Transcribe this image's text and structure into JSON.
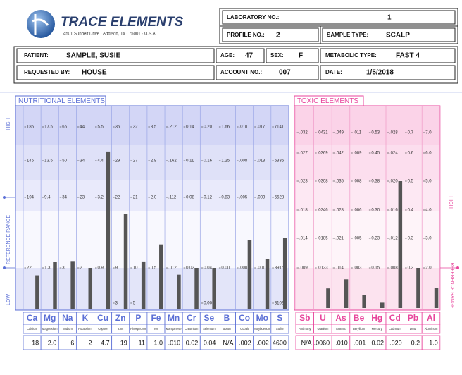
{
  "header": {
    "company": "TRACE ELEMENTS",
    "address": "4501 Sunbelt Drive · Addison, Tx · 75001 · U.S.A."
  },
  "info": {
    "lab_no_label": "LABORATORY NO.:",
    "lab_no": "1",
    "profile_no_label": "PROFILE NO.:",
    "profile_no": "2",
    "sample_type_label": "SAMPLE TYPE:",
    "sample_type": "SCALP",
    "patient_label": "PATIENT:",
    "patient": "SAMPLE, SUSIE",
    "age_label": "AGE:",
    "age": "47",
    "sex_label": "SEX:",
    "sex": "F",
    "metabolic_type_label": "METABOLIC TYPE:",
    "metabolic_type": "FAST 4",
    "requested_by_label": "REQUESTED BY:",
    "requested_by": "HOUSE",
    "account_no_label": "ACCOUNT NO.:",
    "account_no": "007",
    "date_label": "DATE:",
    "date": "1/5/2018"
  },
  "nutritional": {
    "title": "NUTRITIONAL ELEMENTS",
    "axis_labels": {
      "high": "HIGH",
      "reference": "REFERENCE RANGE",
      "low": "LOW"
    },
    "color": "#555555",
    "symbols": [
      "Ca",
      "Mg",
      "Na",
      "K",
      "Cu",
      "Zn",
      "P",
      "Fe",
      "Mn",
      "Cr",
      "Se",
      "B",
      "Co",
      "Mo",
      "S"
    ],
    "names": [
      "Calcium",
      "Magnesium",
      "Sodium",
      "Potassium",
      "Copper",
      "Zinc",
      "Phosphorus",
      "Iron",
      "Manganese",
      "Chromium",
      "Selenium",
      "Boron",
      "Cobalt",
      "Molybdenum",
      "Sulfur"
    ],
    "values": [
      18,
      2,
      6,
      2,
      4.7,
      19,
      11,
      1,
      0.01,
      0.02,
      0.04,
      null,
      0.002,
      0.002,
      4600
    ],
    "value_labels": [
      "18",
      "2.0",
      "6",
      "2",
      "4.7",
      "19",
      "11",
      "1.0",
      ".010",
      "0.02",
      "0.04",
      "N/A",
      ".002",
      ".002",
      "4600"
    ],
    "scales": [
      [
        186,
        145,
        104,
        22,
        null
      ],
      [
        17.5,
        13.5,
        9.4,
        1.3,
        null
      ],
      [
        65,
        50,
        34,
        3,
        null
      ],
      [
        44,
        34,
        23,
        2,
        null
      ],
      [
        5.5,
        4.4,
        3.2,
        0.9,
        null
      ],
      [
        35,
        29,
        22,
        9,
        3
      ],
      [
        32,
        27,
        21,
        10,
        5
      ],
      [
        3.5,
        2.8,
        {
          "value": 2,
          "label": "2.0"
        },
        0.5,
        null
      ],
      [
        {
          "value": 0.212,
          "label": ".212"
        },
        {
          "value": 0.162,
          "label": ".162"
        },
        {
          "value": 0.112,
          "label": ".112"
        },
        {
          "value": 0.012,
          "label": ".012"
        },
        null
      ],
      [
        0.14,
        0.11,
        0.08,
        0.02,
        null
      ],
      [
        {
          "value": 0.2,
          "label": "0.20"
        },
        0.16,
        0.12,
        0.04,
        {
          "value": 0,
          "label": "0.00"
        }
      ],
      [
        1.66,
        1.25,
        0.83,
        {
          "value": 0,
          "label": "0.00"
        },
        null
      ],
      [
        {
          "value": 0.01,
          "label": ".010"
        },
        {
          "value": 0.008,
          "label": ".008"
        },
        {
          "value": 0.005,
          "label": ".005"
        },
        {
          "value": 0,
          "label": ".000"
        },
        null
      ],
      [
        {
          "value": 0.017,
          "label": ".017"
        },
        {
          "value": 0.013,
          "label": ".013"
        },
        {
          "value": 0.009,
          "label": ".009"
        },
        {
          "value": 0.001,
          "label": ".001"
        },
        null
      ],
      [
        7141,
        6335,
        5528,
        3915,
        3109
      ]
    ]
  },
  "toxic": {
    "title": "TOXIC ELEMENTS",
    "axis_labels": {
      "high": "HIGH",
      "reference": "REFERENCE RANGE"
    },
    "color": "#555555",
    "symbols": [
      "Sb",
      "U",
      "As",
      "Be",
      "Hg",
      "Cd",
      "Pb",
      "Al"
    ],
    "names": [
      "Antimony",
      "Uranium",
      "Arsenic",
      "Beryllium",
      "Mercury",
      "Cadmium",
      "Lead",
      "Aluminum"
    ],
    "values": [
      null,
      0.006,
      0.01,
      0.001,
      0.02,
      0.02,
      0.2,
      1
    ],
    "value_labels": [
      "N/A",
      ".0060",
      ".010",
      ".001",
      "0.02",
      ".020",
      "0.2",
      "1.0"
    ],
    "scales": [
      [
        {
          "value": 0.032,
          "label": ".032"
        },
        {
          "value": 0.027,
          "label": ".027"
        },
        {
          "value": 0.023,
          "label": ".023"
        },
        {
          "value": 0.018,
          "label": ".018"
        },
        {
          "value": 0.014,
          "label": ".014"
        },
        {
          "value": 0.009,
          "label": ".009"
        }
      ],
      [
        {
          "value": 0.0431,
          "label": ".0431"
        },
        {
          "value": 0.0369,
          "label": ".0369"
        },
        {
          "value": 0.0308,
          "label": ".0308"
        },
        {
          "value": 0.0246,
          "label": ".0246"
        },
        {
          "value": 0.0185,
          "label": ".0185"
        },
        {
          "value": 0.0123,
          "label": ".0123"
        }
      ],
      [
        {
          "value": 0.049,
          "label": ".049"
        },
        {
          "value": 0.042,
          "label": ".042"
        },
        {
          "value": 0.035,
          "label": ".035"
        },
        {
          "value": 0.028,
          "label": ".028"
        },
        {
          "value": 0.021,
          "label": ".021"
        },
        {
          "value": 0.014,
          "label": ".014"
        }
      ],
      [
        {
          "value": 0.011,
          "label": ".011"
        },
        {
          "value": 0.009,
          "label": ".009"
        },
        {
          "value": 0.008,
          "label": ".008"
        },
        {
          "value": 0.006,
          "label": ".006"
        },
        {
          "value": 0.005,
          "label": ".005"
        },
        {
          "value": 0.003,
          "label": ".003"
        }
      ],
      [
        0.53,
        0.45,
        0.38,
        {
          "value": 0.3,
          "label": "0.30"
        },
        0.23,
        0.15
      ],
      [
        {
          "value": 0.028,
          "label": ".028"
        },
        {
          "value": 0.024,
          "label": ".024"
        },
        {
          "value": 0.02,
          "label": ".020"
        },
        {
          "value": 0.016,
          "label": ".016"
        },
        {
          "value": 0.012,
          "label": ".012"
        },
        {
          "value": 0.008,
          "label": ".008"
        }
      ],
      [
        0.7,
        0.6,
        0.5,
        0.4,
        0.3,
        0.2
      ],
      [
        {
          "value": 7,
          "label": "7.0"
        },
        {
          "value": 6,
          "label": "6.0"
        },
        {
          "value": 5,
          "label": "5.0"
        },
        {
          "value": 4,
          "label": "4.0"
        },
        {
          "value": 3,
          "label": "3.0"
        },
        {
          "value": 2,
          "label": "2.0"
        }
      ]
    ]
  }
}
